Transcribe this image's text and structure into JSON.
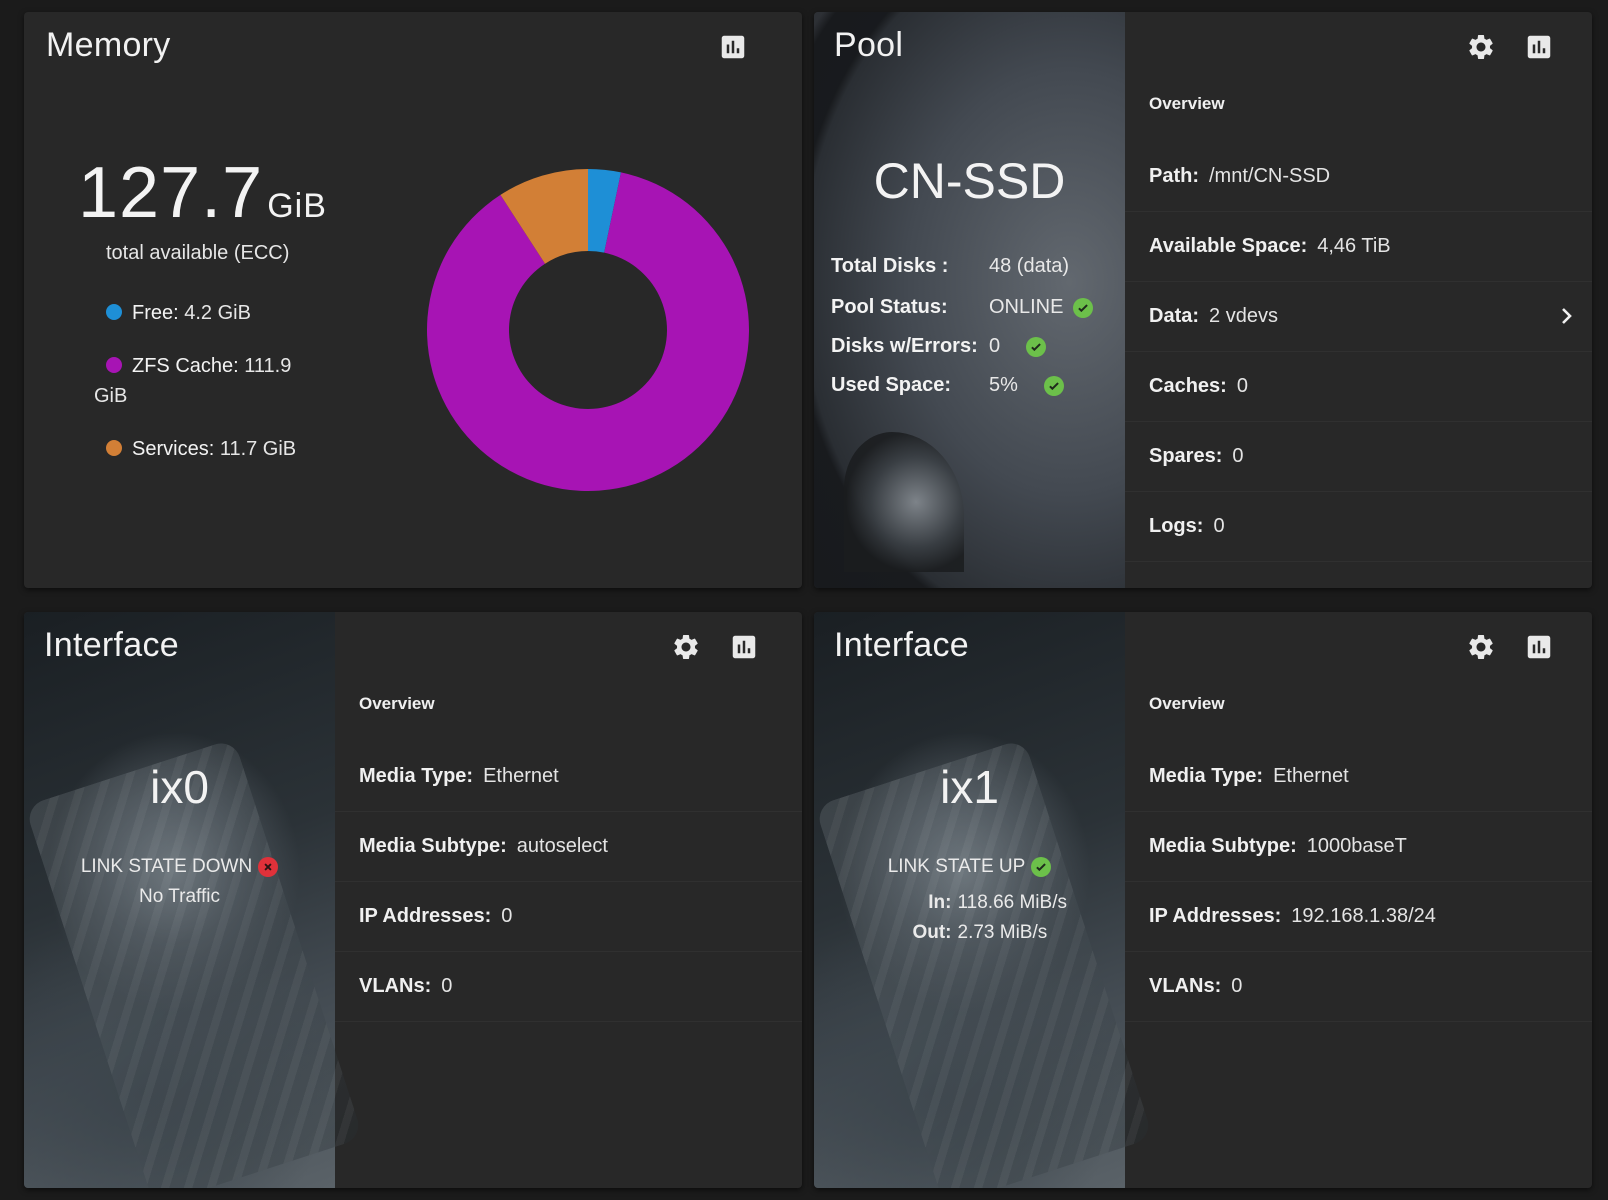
{
  "colors": {
    "free": "#1e8fd6",
    "zfs_cache": "#a714b4",
    "services": "#d27f36",
    "ok": "#6cc04a",
    "error": "#e0313a"
  },
  "memory": {
    "title": "Memory",
    "total_value": "127.7",
    "total_unit": "GiB",
    "total_label": "total available (ECC)",
    "legend": [
      {
        "label": "Free:",
        "value": "4.2 GiB"
      },
      {
        "label": "ZFS Cache:",
        "value": "111.9 GiB"
      },
      {
        "label": "Services:",
        "value": "11.7 GiB"
      }
    ],
    "reports_icon": "bar-chart-icon"
  },
  "chart_data": {
    "type": "pie",
    "title": "Memory",
    "categories": [
      "Free",
      "ZFS Cache",
      "Services"
    ],
    "values": [
      4.2,
      111.9,
      11.7
    ],
    "unit": "GiB",
    "donut": true
  },
  "pool": {
    "title": "Pool",
    "name": "CN-SSD",
    "stats": [
      {
        "label": "Total Disks :",
        "value": "48 (data)"
      },
      {
        "label": "Pool Status:",
        "value": "ONLINE"
      },
      {
        "label": "Disks w/Errors:",
        "value": "0"
      },
      {
        "label": "Used Space:",
        "value": "5%"
      }
    ],
    "overview_label": "Overview",
    "details": [
      {
        "label": "Path:",
        "value": "/mnt/CN-SSD"
      },
      {
        "label": "Available Space:",
        "value": "4,46  TiB"
      },
      {
        "label": "Data:",
        "value": "2 vdevs"
      },
      {
        "label": "Caches:",
        "value": "0"
      },
      {
        "label": "Spares:",
        "value": "0"
      },
      {
        "label": "Logs:",
        "value": "0"
      }
    ],
    "settings_icon": "gear-icon",
    "reports_icon": "bar-chart-icon"
  },
  "interfaces": [
    {
      "title": "Interface",
      "name": "ix0",
      "link_state": "LINK STATE DOWN",
      "traffic": "No Traffic",
      "overview_label": "Overview",
      "details": [
        {
          "label": "Media Type:",
          "value": "Ethernet"
        },
        {
          "label": "Media Subtype:",
          "value": "autoselect"
        },
        {
          "label": "IP Addresses:",
          "value": "0"
        },
        {
          "label": "VLANs:",
          "value": "0"
        }
      ]
    },
    {
      "title": "Interface",
      "name": "ix1",
      "link_state": "LINK STATE UP",
      "in_label": "In:",
      "in_value": "118.66 MiB/s",
      "out_label": "Out:",
      "out_value": "2.73 MiB/s",
      "overview_label": "Overview",
      "details": [
        {
          "label": "Media Type:",
          "value": "Ethernet"
        },
        {
          "label": "Media Subtype:",
          "value": "1000baseT"
        },
        {
          "label": "IP Addresses:",
          "value": "192.168.1.38/24"
        },
        {
          "label": "VLANs:",
          "value": "0"
        }
      ]
    }
  ]
}
